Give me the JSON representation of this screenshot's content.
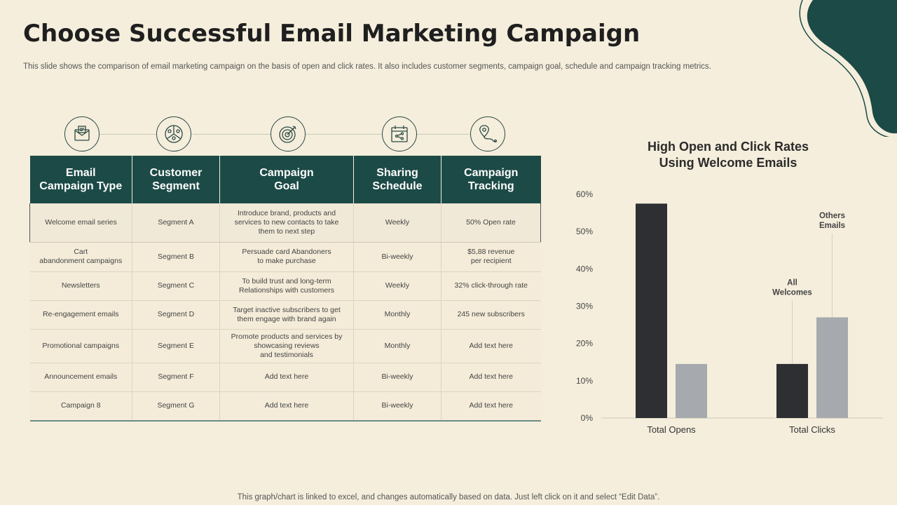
{
  "slide": {
    "title": "Choose Successful Email Marketing Campaign",
    "subtitle": "This slide shows the comparison of email marketing campaign on the basis of open and click rates. It also includes customer segments, campaign goal, schedule and campaign tracking metrics.",
    "footer": "This graph/chart is linked to excel,  and changes automatically based on data. Just left click on it and select “Edit Data”."
  },
  "colors": {
    "accent": "#1b4a47",
    "background": "#f5eedd",
    "bar_dark": "#2d2f33",
    "bar_light": "#a6a9ae"
  },
  "icons": [
    "email-icon",
    "segment-people-icon",
    "target-icon",
    "calendar-share-icon",
    "location-route-icon"
  ],
  "table": {
    "headers": [
      "Email\nCampaign Type",
      "Customer\nSegment",
      "Campaign\nGoal",
      "Sharing\nSchedule",
      "Campaign\nTracking"
    ],
    "rows": [
      [
        "Welcome email  series",
        "Segment  A",
        "Introduce brand, products and services to new contacts to take them to next step",
        "Weekly",
        "50% Open rate"
      ],
      [
        "Cart\nabandonment  campaigns",
        "Segment  B",
        "Persuade card Abandoners\nto make purchase",
        "Bi-weekly",
        "$5,88 revenue\nper recipient"
      ],
      [
        "Newsletters",
        "Segment  C",
        "To build trust and long-term Relationships with customers",
        "Weekly",
        "32% click-through rate"
      ],
      [
        "Re-engagement  emails",
        "Segment  D",
        "Target inactive subscribers to get them engage with brand again",
        "Monthly",
        "245  new subscribers"
      ],
      [
        "Promotional  campaigns",
        "Segment  E",
        "Promote products and services by showcasing reviews\nand testimonials",
        "Monthly",
        "Add text here"
      ],
      [
        "Announcement emails",
        "Segment  F",
        "Add text here",
        "Bi-weekly",
        "Add text here"
      ],
      [
        "Campaign  8",
        "Segment  G",
        "Add text here",
        "Bi-weekly",
        "Add text here"
      ]
    ]
  },
  "chart_data": {
    "type": "bar",
    "title": "High Open and Click Rates\nUsing Welcome Emails",
    "categories": [
      "Total Opens",
      "Total Clicks"
    ],
    "series": [
      {
        "name": "All Welcomes",
        "values": [
          57.5,
          14.5
        ]
      },
      {
        "name": "Others Emails",
        "values": [
          14.5,
          27
        ]
      }
    ],
    "yticks": [
      "0%",
      "10%",
      "20%",
      "30%",
      "40%",
      "50%",
      "60%"
    ],
    "ylim": [
      0,
      60
    ],
    "annotations": [
      {
        "text": "All\nWelcomes",
        "category": "Total Clicks",
        "series": "All Welcomes"
      },
      {
        "text": "Others\nEmails",
        "category": "Total Clicks",
        "series": "Others Emails"
      }
    ],
    "grid": false,
    "legend": "none"
  }
}
